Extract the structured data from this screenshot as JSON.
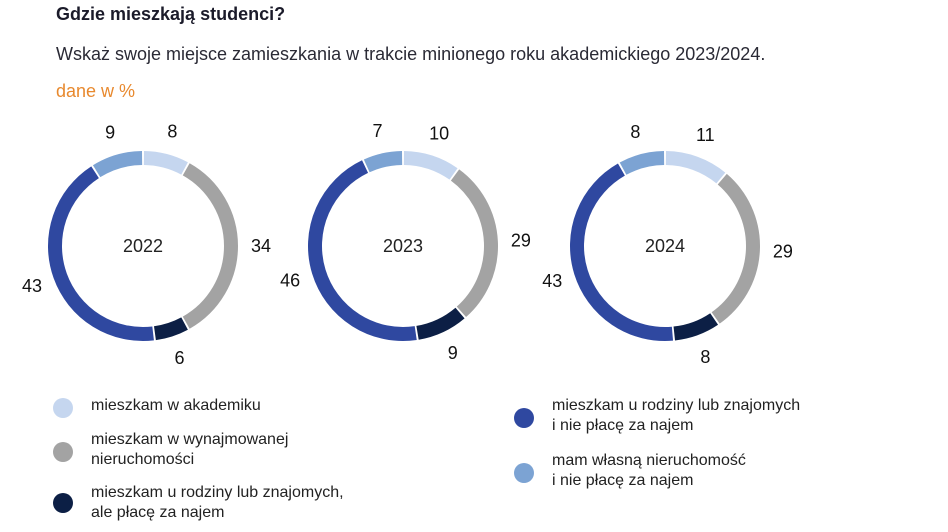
{
  "header": {
    "title": "Gdzie mieszkają studenci?",
    "subtitle": "Wskaż swoje miejsce zamieszkania w trakcie minionego roku akademickiego 2023/2024.",
    "unit": "dane w %"
  },
  "chart_data": {
    "type": "donut",
    "categories": [
      "mieszkam w akademiku",
      "mieszkam w wynajmowanej nieruchomości",
      "mieszkam u rodziny lub znajomych, ale płacę za najem",
      "mieszkam u rodziny lub znajomych i nie płacę za najem",
      "mam własną nieruchomość i nie płacę za najem"
    ],
    "colors": [
      "#c5d6ef",
      "#a3a3a3",
      "#0c1f45",
      "#2f48a0",
      "#7ca3d3"
    ],
    "series": [
      {
        "name": "2022",
        "values": [
          8,
          34,
          6,
          43,
          9
        ]
      },
      {
        "name": "2023",
        "values": [
          10,
          29,
          9,
          46,
          7
        ]
      },
      {
        "name": "2024",
        "values": [
          11,
          29,
          8,
          43,
          8
        ]
      }
    ]
  },
  "legend": [
    {
      "lines": [
        "mieszkam w akademiku"
      ],
      "color": "#c5d6ef"
    },
    {
      "lines": [
        "mieszkam w wynajmowanej",
        "nieruchomości"
      ],
      "color": "#a3a3a3"
    },
    {
      "lines": [
        "mieszkam u rodziny lub znajomych,",
        "ale płacę za najem"
      ],
      "color": "#0c1f45"
    },
    {
      "lines": [
        "mieszkam u rodziny lub znajomych",
        "i nie płacę za najem"
      ],
      "color": "#2f48a0"
    },
    {
      "lines": [
        "mam własną nieruchomość",
        "i nie płacę za najem"
      ],
      "color": "#7ca3d3"
    }
  ]
}
